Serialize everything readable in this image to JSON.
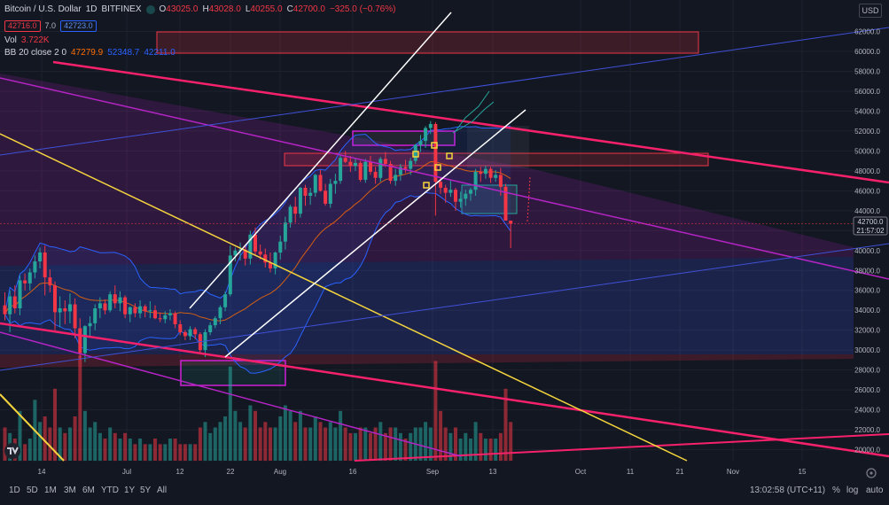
{
  "header": {
    "symbol": "Bitcoin / U.S. Dollar",
    "interval": "1D",
    "exchange": "BITFINEX",
    "o_label": "O",
    "o_value": "43025.0",
    "h_label": "H",
    "h_value": "43028.0",
    "l_label": "L",
    "l_value": "40255.0",
    "c_label": "C",
    "c_value": "42700.0",
    "change": "−325.0 (−0.76%)",
    "bid": "42716.0",
    "spread": "7.0",
    "ask": "42723.0",
    "vol_label": "Vol",
    "vol_value": "3.722K",
    "bb_label": "BB 20 close 2 0",
    "bb_basis": "47279.9",
    "bb_upper": "52348.7",
    "bb_lower": "42211.0"
  },
  "usd_button": "USD",
  "price_tag": {
    "price": "42700.0",
    "countdown": "21:57:02"
  },
  "bottom_bar": {
    "timeframes": [
      "1D",
      "5D",
      "1M",
      "3M",
      "6M",
      "YTD",
      "1Y",
      "5Y",
      "All"
    ],
    "clock": "13:02:58 (UTC+11)",
    "percent": "%",
    "log": "log",
    "auto": "auto"
  },
  "colors": {
    "background": "#131722",
    "up": "#26a69a",
    "down": "#f23645",
    "bb_band": "#2962ff",
    "bb_basis": "#ff6d00",
    "trend_red": "#f7216b",
    "trend_magenta": "#b424c4",
    "trend_yellow": "#f5d53d",
    "trend_white": "#ffffff",
    "trend_blue": "#3f51d9"
  },
  "chart_data": {
    "type": "candlestick",
    "title": "Bitcoin / U.S. Dollar · 1D · BITFINEX",
    "y_axis_ticks": [
      20000,
      22000,
      24000,
      26000,
      28000,
      30000,
      32000,
      34000,
      36000,
      38000,
      40000,
      42000,
      44000,
      46000,
      48000,
      50000,
      52000,
      54000,
      56000,
      58000,
      60000,
      62000
    ],
    "y_axis_labels": [
      "20000.0",
      "22000.0",
      "24000.0",
      "26000.0",
      "28000.0",
      "30000.0",
      "32000.0",
      "34000.0",
      "36000.0",
      "38000.0",
      "40000.0",
      "42000.0",
      "44000.0",
      "46000.0",
      "48000.0",
      "50000.0",
      "52000.0",
      "54000.0",
      "56000.0",
      "58000.0",
      "60000.0",
      "62000.0"
    ],
    "ylim": [
      18500,
      65000
    ],
    "x_axis_labels": [
      "14",
      "Jul",
      "12",
      "22",
      "Aug",
      "16",
      "Sep",
      "13",
      "Oct",
      "11",
      "21",
      "Nov",
      "15"
    ],
    "candles": [
      {
        "o": 34500,
        "h": 35800,
        "l": 33000,
        "c": 33600
      },
      {
        "o": 33600,
        "h": 36000,
        "l": 31800,
        "c": 35400
      },
      {
        "o": 35400,
        "h": 36500,
        "l": 33700,
        "c": 34200
      },
      {
        "o": 34200,
        "h": 37500,
        "l": 33500,
        "c": 37000
      },
      {
        "o": 37000,
        "h": 37700,
        "l": 36000,
        "c": 36700
      },
      {
        "o": 36700,
        "h": 38200,
        "l": 36000,
        "c": 37800
      },
      {
        "o": 37800,
        "h": 39500,
        "l": 37200,
        "c": 38900
      },
      {
        "o": 38900,
        "h": 40300,
        "l": 38200,
        "c": 39800
      },
      {
        "o": 39800,
        "h": 40500,
        "l": 35500,
        "c": 37300
      },
      {
        "o": 37300,
        "h": 38100,
        "l": 35800,
        "c": 36500
      },
      {
        "o": 36500,
        "h": 36900,
        "l": 32000,
        "c": 33800
      },
      {
        "o": 33800,
        "h": 35400,
        "l": 32300,
        "c": 34200
      },
      {
        "o": 34200,
        "h": 35000,
        "l": 32600,
        "c": 33900
      },
      {
        "o": 33900,
        "h": 35700,
        "l": 32700,
        "c": 34600
      },
      {
        "o": 34600,
        "h": 35200,
        "l": 31200,
        "c": 32200
      },
      {
        "o": 32200,
        "h": 33200,
        "l": 29000,
        "c": 29700
      },
      {
        "o": 29700,
        "h": 32500,
        "l": 28800,
        "c": 32400
      },
      {
        "o": 32400,
        "h": 33400,
        "l": 31300,
        "c": 32700
      },
      {
        "o": 32700,
        "h": 34600,
        "l": 32000,
        "c": 34200
      },
      {
        "o": 34200,
        "h": 35300,
        "l": 33200,
        "c": 34700
      },
      {
        "o": 34700,
        "h": 35100,
        "l": 33600,
        "c": 34000
      },
      {
        "o": 34000,
        "h": 35900,
        "l": 33800,
        "c": 35600
      },
      {
        "o": 35600,
        "h": 36500,
        "l": 34200,
        "c": 34700
      },
      {
        "o": 34700,
        "h": 35900,
        "l": 33900,
        "c": 35300
      },
      {
        "o": 35300,
        "h": 35500,
        "l": 33200,
        "c": 33600
      },
      {
        "o": 33600,
        "h": 34400,
        "l": 32800,
        "c": 34300
      },
      {
        "o": 34300,
        "h": 34700,
        "l": 33300,
        "c": 33700
      },
      {
        "o": 33700,
        "h": 35000,
        "l": 33200,
        "c": 34400
      },
      {
        "o": 34400,
        "h": 34600,
        "l": 33300,
        "c": 33900
      },
      {
        "o": 33900,
        "h": 34900,
        "l": 33200,
        "c": 34000
      },
      {
        "o": 34000,
        "h": 34500,
        "l": 33100,
        "c": 33200
      },
      {
        "o": 33200,
        "h": 33800,
        "l": 32800,
        "c": 33100
      },
      {
        "o": 33100,
        "h": 33900,
        "l": 32700,
        "c": 33500
      },
      {
        "o": 33500,
        "h": 34100,
        "l": 33000,
        "c": 33700
      },
      {
        "o": 33700,
        "h": 33900,
        "l": 32200,
        "c": 32600
      },
      {
        "o": 32600,
        "h": 33000,
        "l": 31500,
        "c": 31800
      },
      {
        "o": 31800,
        "h": 32000,
        "l": 31000,
        "c": 31400
      },
      {
        "o": 31400,
        "h": 32400,
        "l": 31000,
        "c": 32100
      },
      {
        "o": 32100,
        "h": 32300,
        "l": 31100,
        "c": 31600
      },
      {
        "o": 31600,
        "h": 31800,
        "l": 29600,
        "c": 30000
      },
      {
        "o": 30000,
        "h": 32100,
        "l": 29300,
        "c": 31800
      },
      {
        "o": 31800,
        "h": 32800,
        "l": 31500,
        "c": 32500
      },
      {
        "o": 32500,
        "h": 33400,
        "l": 32200,
        "c": 33200
      },
      {
        "o": 33200,
        "h": 34500,
        "l": 32600,
        "c": 34300
      },
      {
        "o": 34300,
        "h": 35900,
        "l": 33900,
        "c": 35600
      },
      {
        "o": 35600,
        "h": 40500,
        "l": 35400,
        "c": 39500
      },
      {
        "o": 39500,
        "h": 40300,
        "l": 38900,
        "c": 40000
      },
      {
        "o": 40000,
        "h": 40800,
        "l": 39000,
        "c": 40100
      },
      {
        "o": 40100,
        "h": 40500,
        "l": 38500,
        "c": 39200
      },
      {
        "o": 39200,
        "h": 42000,
        "l": 38600,
        "c": 41600
      },
      {
        "o": 41600,
        "h": 42300,
        "l": 39500,
        "c": 39900
      },
      {
        "o": 39900,
        "h": 40600,
        "l": 39100,
        "c": 39600
      },
      {
        "o": 39600,
        "h": 40200,
        "l": 38300,
        "c": 38800
      },
      {
        "o": 38800,
        "h": 39800,
        "l": 37800,
        "c": 38200
      },
      {
        "o": 38200,
        "h": 39900,
        "l": 37600,
        "c": 39800
      },
      {
        "o": 39800,
        "h": 41500,
        "l": 39100,
        "c": 40900
      },
      {
        "o": 40900,
        "h": 43400,
        "l": 40100,
        "c": 42800
      },
      {
        "o": 42800,
        "h": 44600,
        "l": 42300,
        "c": 44400
      },
      {
        "o": 44400,
        "h": 45400,
        "l": 42800,
        "c": 43700
      },
      {
        "o": 43700,
        "h": 46400,
        "l": 43300,
        "c": 46300
      },
      {
        "o": 46300,
        "h": 46600,
        "l": 44500,
        "c": 45500
      },
      {
        "o": 45500,
        "h": 46300,
        "l": 44600,
        "c": 45800
      },
      {
        "o": 45800,
        "h": 47700,
        "l": 45400,
        "c": 47600
      },
      {
        "o": 47600,
        "h": 48100,
        "l": 45900,
        "c": 46000
      },
      {
        "o": 46000,
        "h": 46700,
        "l": 44500,
        "c": 44700
      },
      {
        "o": 44700,
        "h": 47200,
        "l": 44300,
        "c": 46700
      },
      {
        "o": 46700,
        "h": 47700,
        "l": 45700,
        "c": 47000
      },
      {
        "o": 47000,
        "h": 49600,
        "l": 46700,
        "c": 49300
      },
      {
        "o": 49300,
        "h": 50000,
        "l": 48800,
        "c": 48900
      },
      {
        "o": 48900,
        "h": 49500,
        "l": 47900,
        "c": 48500
      },
      {
        "o": 48500,
        "h": 49200,
        "l": 48000,
        "c": 48800
      },
      {
        "o": 48800,
        "h": 49000,
        "l": 46900,
        "c": 47100
      },
      {
        "o": 47100,
        "h": 49200,
        "l": 46800,
        "c": 48900
      },
      {
        "o": 48900,
        "h": 49500,
        "l": 47600,
        "c": 47900
      },
      {
        "o": 47900,
        "h": 48400,
        "l": 46700,
        "c": 47300
      },
      {
        "o": 47300,
        "h": 49400,
        "l": 46900,
        "c": 49200
      },
      {
        "o": 49200,
        "h": 49900,
        "l": 48400,
        "c": 48700
      },
      {
        "o": 48700,
        "h": 49000,
        "l": 46700,
        "c": 47000
      },
      {
        "o": 47000,
        "h": 48200,
        "l": 46500,
        "c": 47600
      },
      {
        "o": 47600,
        "h": 48700,
        "l": 47000,
        "c": 48400
      },
      {
        "o": 48400,
        "h": 49100,
        "l": 47800,
        "c": 48200
      },
      {
        "o": 48200,
        "h": 49300,
        "l": 47600,
        "c": 49000
      },
      {
        "o": 49000,
        "h": 50700,
        "l": 48700,
        "c": 50600
      },
      {
        "o": 50600,
        "h": 51600,
        "l": 49900,
        "c": 51000
      },
      {
        "o": 51000,
        "h": 52500,
        "l": 50300,
        "c": 52300
      },
      {
        "o": 52300,
        "h": 53000,
        "l": 51700,
        "c": 52700
      },
      {
        "o": 52700,
        "h": 52900,
        "l": 43500,
        "c": 46900
      },
      {
        "o": 46900,
        "h": 47400,
        "l": 45700,
        "c": 46300
      },
      {
        "o": 46300,
        "h": 46600,
        "l": 44800,
        "c": 45800
      },
      {
        "o": 45800,
        "h": 47100,
        "l": 45400,
        "c": 46100
      },
      {
        "o": 46100,
        "h": 46300,
        "l": 44000,
        "c": 44900
      },
      {
        "o": 44900,
        "h": 45900,
        "l": 44300,
        "c": 45200
      },
      {
        "o": 45200,
        "h": 46100,
        "l": 44500,
        "c": 45700
      },
      {
        "o": 45700,
        "h": 46300,
        "l": 45000,
        "c": 46100
      },
      {
        "o": 46100,
        "h": 48200,
        "l": 45500,
        "c": 47900
      },
      {
        "o": 47900,
        "h": 48400,
        "l": 46900,
        "c": 47700
      },
      {
        "o": 47700,
        "h": 48500,
        "l": 47200,
        "c": 48200
      },
      {
        "o": 48200,
        "h": 48400,
        "l": 46800,
        "c": 47300
      },
      {
        "o": 47300,
        "h": 48100,
        "l": 46900,
        "c": 47600
      },
      {
        "o": 47600,
        "h": 48300,
        "l": 45500,
        "c": 46400
      },
      {
        "o": 46400,
        "h": 46700,
        "l": 43000,
        "c": 43000
      },
      {
        "o": 43000,
        "h": 43000,
        "l": 40255,
        "c": 42700
      }
    ],
    "volumes": [
      0.3,
      0.25,
      0.2,
      0.45,
      0.15,
      0.2,
      0.55,
      0.35,
      0.4,
      0.3,
      0.65,
      0.3,
      0.25,
      0.3,
      0.4,
      0.95,
      0.45,
      0.3,
      0.35,
      0.25,
      0.2,
      0.3,
      0.25,
      0.2,
      0.25,
      0.2,
      0.15,
      0.2,
      0.15,
      0.15,
      0.2,
      0.15,
      0.15,
      0.2,
      0.2,
      0.15,
      0.15,
      0.15,
      0.15,
      0.3,
      0.35,
      0.25,
      0.3,
      0.35,
      0.4,
      0.85,
      0.45,
      0.35,
      0.3,
      0.5,
      0.45,
      0.3,
      0.35,
      0.3,
      0.3,
      0.4,
      0.5,
      0.45,
      0.35,
      0.45,
      0.3,
      0.3,
      0.4,
      0.35,
      0.3,
      0.35,
      0.3,
      0.45,
      0.3,
      0.25,
      0.25,
      0.3,
      0.3,
      0.25,
      0.3,
      0.35,
      0.25,
      0.3,
      0.3,
      0.25,
      0.2,
      0.25,
      0.3,
      0.3,
      0.35,
      0.3,
      0.9,
      0.45,
      0.3,
      0.25,
      0.3,
      0.2,
      0.25,
      0.2,
      0.35,
      0.25,
      0.2,
      0.2,
      0.2,
      0.25,
      0.65,
      0.35
    ],
    "current_price": 42700,
    "bb_last": {
      "basis": 47279.9,
      "upper": 52348.7,
      "lower": 42211.0
    }
  }
}
